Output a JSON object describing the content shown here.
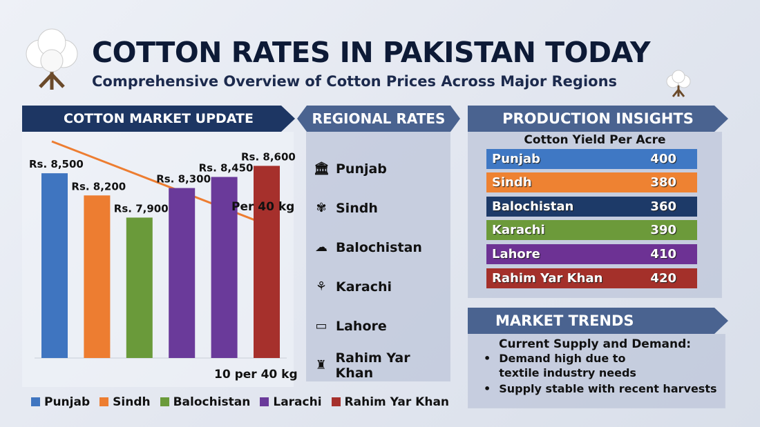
{
  "header": {
    "title": "COTTON RATES IN PAKISTAN TODAY",
    "subtitle": "Comprehensive Overview of Cotton Prices Across Major Regions"
  },
  "market_update": {
    "heading": "COTTON MARKET UPDATE",
    "note_top": "Per 40 kg",
    "note_bottom": "10 per 40 kg"
  },
  "chart_data": {
    "type": "bar",
    "categories": [
      "Punjab",
      "Sindh",
      "Balochistan",
      "Larachi",
      "Larachi",
      "Rahim Yar Khan"
    ],
    "values": [
      8500,
      8200,
      7900,
      8300,
      8450,
      8600
    ],
    "data_labels": [
      "Rs. 8,500",
      "Rs. 8,200",
      "Rs. 7,900",
      "Rs. 8,300",
      "Rs. 8,450",
      "Rs. 8,600"
    ],
    "colors": [
      "#3f75c0",
      "#ed7d31",
      "#6a9a3a",
      "#6a3a9a",
      "#6a3a9a",
      "#a6302c"
    ],
    "legend": [
      {
        "label": "Punjab",
        "color": "#3f75c0"
      },
      {
        "label": "Sindh",
        "color": "#ed7d31"
      },
      {
        "label": "Balochistan",
        "color": "#6a9a3a"
      },
      {
        "label": "Larachi",
        "color": "#6a3a9a"
      },
      {
        "label": "Rahim Yar Khan",
        "color": "#a6302c"
      }
    ],
    "legend_position": "bottom",
    "grid": false,
    "trend_arrow": "downward",
    "trend_color": "#ed7d31"
  },
  "regional": {
    "heading": "REGIONAL RATES",
    "items": [
      {
        "label": "Punjab",
        "icon": "building-icon"
      },
      {
        "label": "Sindh",
        "icon": "plant-icon"
      },
      {
        "label": "Balochistan",
        "icon": "cotton-icon"
      },
      {
        "label": "Karachi",
        "icon": "cotton-plant-icon"
      },
      {
        "label": "Lahore",
        "icon": "map-icon"
      },
      {
        "label": "Rahim Yar Khan",
        "icon": "factory-icon"
      }
    ]
  },
  "production": {
    "heading": "PRODUCTION INSIGHTS",
    "subheading": "Cotton Yield Per Acre",
    "rows": [
      {
        "region": "Punjab",
        "value": "400",
        "color": "#3f78c4"
      },
      {
        "region": "Sindh",
        "value": "380",
        "color": "#ee8232"
      },
      {
        "region": "Balochistan",
        "value": "360",
        "color": "#1d3a68"
      },
      {
        "region": "Karachi",
        "value": "390",
        "color": "#6c9a3a"
      },
      {
        "region": "Lahore",
        "value": "410",
        "color": "#6d3294"
      },
      {
        "region": "Rahim Yar Khan",
        "value": "420",
        "color": "#a4302a"
      }
    ]
  },
  "trends": {
    "heading": "MARKET TRENDS",
    "subheading": "Current Supply and Demand:",
    "bullets": [
      "Demand high due to textile industry needs",
      "Supply stable with recent harvests"
    ]
  }
}
